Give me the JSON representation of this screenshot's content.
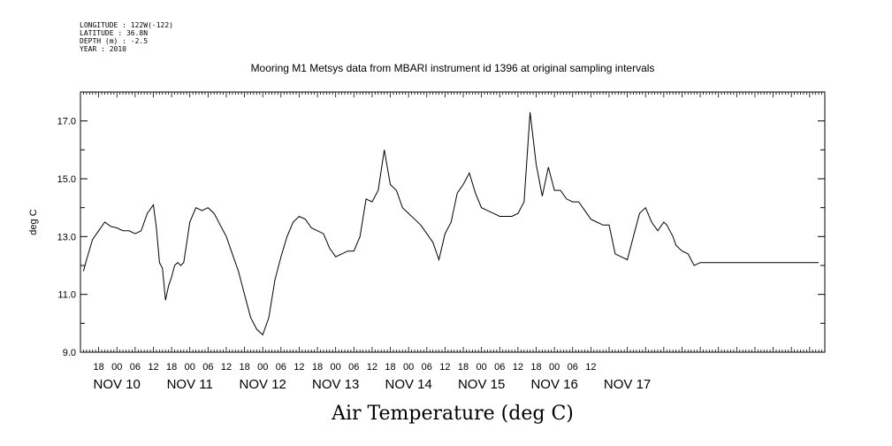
{
  "meta_lines": [
    "LONGITUDE : 122W(-122)",
    "LATITUDE : 36.8N",
    "DEPTH (m) : -2.5",
    "YEAR : 2010"
  ],
  "chart_data": {
    "type": "line",
    "title": "Mooring M1 Metsys data from MBARI instrument id 1396 at original sampling intervals",
    "xlabel": "Air Temperature (deg C)",
    "ylabel": "deg C",
    "ylim": [
      9.0,
      18.0
    ],
    "yticks": [
      "9.0",
      "11.0",
      "13.0",
      "15.0",
      "17.0"
    ],
    "x_range_hours": [
      -12,
      233
    ],
    "hour_tick_labels": [
      "18",
      "00",
      "06",
      "12",
      "18",
      "00",
      "06",
      "12",
      "18",
      "00",
      "06",
      "12",
      "18",
      "00",
      "06",
      "12",
      "18",
      "00",
      "06",
      "12",
      "18",
      "00",
      "06",
      "12",
      "18",
      "00",
      "06",
      "12"
    ],
    "day_labels": [
      "NOV 10",
      "NOV 11",
      "NOV 12",
      "NOV 13",
      "NOV 14",
      "NOV 15",
      "NOV 16",
      "NOV 17"
    ],
    "grid": false,
    "series": [
      {
        "x": [
          -11,
          -10,
          -8,
          -6,
          -4,
          -2,
          0,
          2,
          4,
          6,
          8,
          10,
          12,
          13,
          14,
          15,
          16,
          17,
          18,
          19,
          20,
          21,
          22,
          23,
          24,
          26,
          28,
          30,
          32,
          34,
          36,
          38,
          40,
          42,
          44,
          46,
          48,
          50,
          52,
          54,
          56,
          58,
          60,
          62,
          64,
          66,
          68,
          70,
          72,
          74,
          76,
          78,
          80,
          82,
          84,
          86,
          88,
          90,
          92,
          94,
          96,
          98,
          100,
          102,
          104,
          106,
          108,
          110,
          112,
          114,
          116,
          118,
          120,
          122,
          124,
          126,
          128,
          130,
          132,
          134,
          136,
          138,
          140,
          142,
          144,
          146,
          148,
          150,
          152,
          154,
          156,
          158,
          160,
          162,
          164,
          166,
          168,
          170,
          172,
          174,
          176,
          178,
          180,
          181,
          182,
          183,
          184,
          186,
          188,
          190,
          192,
          194,
          196,
          198,
          200,
          202,
          204,
          206,
          208,
          210,
          212,
          214,
          216,
          218,
          220,
          222,
          224,
          226,
          228,
          230,
          231
        ],
        "y": [
          11.8,
          12.2,
          12.9,
          13.2,
          13.5,
          13.35,
          13.3,
          13.2,
          13.2,
          13.1,
          13.2,
          13.8,
          14.1,
          13.3,
          12.1,
          11.9,
          10.8,
          11.3,
          11.6,
          12.0,
          12.1,
          12.0,
          12.1,
          12.8,
          13.5,
          14.0,
          13.9,
          14.0,
          13.8,
          13.4,
          13.0,
          12.4,
          11.8,
          11.0,
          10.2,
          9.8,
          9.6,
          10.2,
          11.5,
          12.3,
          13.0,
          13.5,
          13.7,
          13.6,
          13.3,
          13.2,
          13.1,
          12.6,
          12.3,
          12.4,
          12.5,
          12.5,
          13.0,
          14.3,
          14.2,
          14.6,
          16.0,
          14.8,
          14.6,
          14.0,
          13.8,
          13.6,
          13.4,
          13.1,
          12.8,
          12.2,
          13.1,
          13.5,
          14.5,
          14.8,
          15.2,
          14.5,
          14.0,
          13.9,
          13.8,
          13.7,
          13.7,
          13.7,
          13.8,
          14.2,
          17.3,
          15.5,
          14.4,
          15.4,
          14.6,
          14.6,
          14.3,
          14.2,
          14.2,
          13.9,
          13.6,
          13.5,
          13.4,
          13.4,
          12.4,
          12.3,
          12.2,
          13.0,
          13.8,
          14.0,
          13.5,
          13.2,
          13.5,
          13.4,
          13.2,
          13.0,
          12.7,
          12.5,
          12.4,
          12.0,
          12.1,
          12.1,
          12.1,
          12.1,
          12.1,
          12.1,
          12.1,
          12.1,
          12.1,
          12.1,
          12.1,
          12.1,
          12.1,
          12.1,
          12.1,
          12.1,
          12.1,
          12.1,
          12.1,
          12.1,
          12.1
        ]
      }
    ]
  }
}
